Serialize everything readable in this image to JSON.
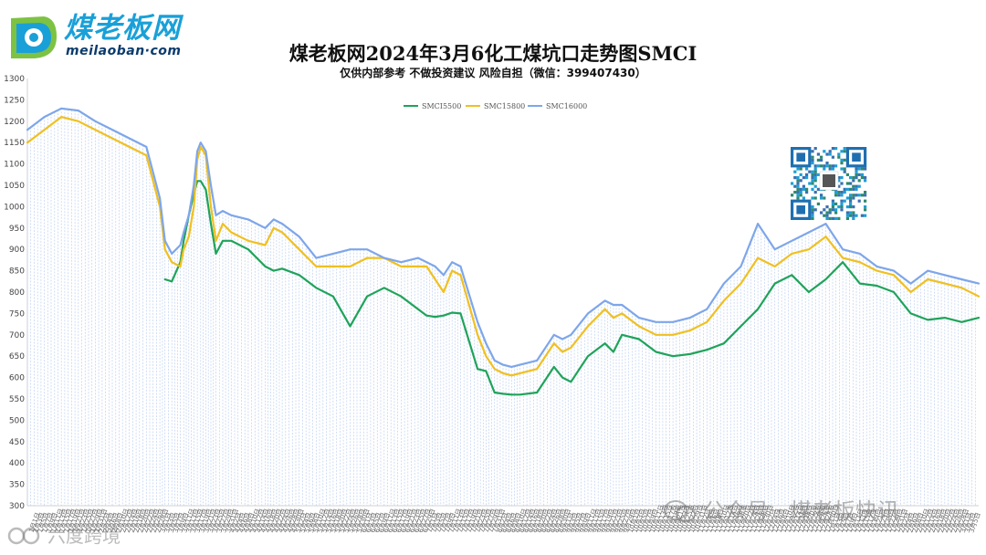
{
  "brand": {
    "name": "煤老板网",
    "url": "meilaoban·com"
  },
  "header": {
    "title": "煤老板网2024年3月6化工煤坑口走势图SMCI",
    "subtitle": "仅供内部参考 不做投资建议 风险自担（微信：399407430）"
  },
  "watermarks": {
    "wechat": "公众号 · 煤老板快讯",
    "corner": "六度跨境"
  },
  "icons": {
    "logo": "logo-mark-icon",
    "qr": "qr-code-icon",
    "wechat": "wechat-icon",
    "corner": "corner-brand-icon"
  },
  "chart_data": {
    "type": "line",
    "title": "煤老板网2024年3月6化工煤坑口走势图SMCI",
    "ylim": [
      300,
      1300
    ],
    "y_ticks": [
      300,
      350,
      400,
      450,
      500,
      550,
      600,
      650,
      700,
      750,
      800,
      850,
      900,
      950,
      1000,
      1050,
      1100,
      1150,
      1200,
      1250,
      1300
    ],
    "legend_position": "top-center",
    "grid": false,
    "x_ticks": [
      "1月1日",
      "1月3日",
      "1月5日",
      "1月7日",
      "1月9日",
      "1月11日",
      "1月13日",
      "1月15日",
      "1月17日",
      "1月19日",
      "1月21日",
      "1月23日",
      "1月25日",
      "1月27日",
      "1月29日",
      "1月31日",
      "2月2日",
      "2月4日",
      "2月6日",
      "2月8日",
      "2月10日",
      "2月12日",
      "2月14日",
      "2月16日",
      "2月18日",
      "2月20日",
      "2月22日",
      "2月24日",
      "2月26日",
      "2月28日",
      "3月1日",
      "3月3日",
      "3月5日",
      "3月7日",
      "3月9日",
      "3月11日",
      "3月13日",
      "3月15日",
      "3月17日",
      "3月19日",
      "3月21日",
      "3月23日",
      "3月25日",
      "3月27日",
      "3月29日",
      "3月31日",
      "4月2日",
      "4月4日",
      "4月6日",
      "4月8日",
      "4月10日",
      "4月12日",
      "4月14日",
      "4月16日",
      "4月18日",
      "4月20日",
      "4月22日",
      "4月24日",
      "4月26日",
      "4月28日",
      "4月30日",
      "5月2日",
      "5月4日",
      "5月6日",
      "5月8日",
      "5月10日",
      "5月12日",
      "5月14日",
      "5月16日",
      "5月18日",
      "5月20日",
      "5月22日",
      "5月24日",
      "5月26日",
      "5月28日",
      "5月30日",
      "6月1日",
      "6月3日",
      "6月5日",
      "6月7日",
      "6月9日",
      "6月11日",
      "6月13日",
      "6月15日",
      "6月17日",
      "6月19日",
      "6月21日",
      "6月23日",
      "6月25日",
      "6月27日",
      "6月29日",
      "7月1日",
      "7月3日",
      "7月5日",
      "7月7日",
      "7月9日",
      "7月11日",
      "7月13日",
      "7月15日",
      "7月17日",
      "7月19日",
      "7月21日",
      "7月23日",
      "7月25日",
      "7月27日",
      "7月29日",
      "7月31日",
      "8月2日",
      "8月4日",
      "8月6日",
      "8月8日",
      "8月10日",
      "8月12日",
      "8月14日",
      "8月16日",
      "8月18日",
      "8月20日",
      "8月22日",
      "8月24日",
      "8月26日",
      "8月28日",
      "8月30日",
      "9月1日",
      "9月3日",
      "9月5日",
      "9月7日",
      "9月9日",
      "9月11日",
      "9月13日",
      "9月15日",
      "9月17日",
      "9月19日",
      "9月21日",
      "9月23日",
      "9月25日",
      "9月27日",
      "9月29日",
      "10月1日",
      "10月3日",
      "10月5日",
      "10月7日",
      "10月9日",
      "10月11日",
      "10月13日",
      "10月15日",
      "10月17日",
      "10月19日",
      "10月21日",
      "10月23日",
      "10月25日",
      "10月27日",
      "10月29日",
      "10月31日",
      "11月2日",
      "11月4日",
      "11月6日",
      "11月8日",
      "11月10日",
      "11月12日",
      "11月14日",
      "11月16日",
      "11月18日",
      "11月20日",
      "11月22日",
      "11月24日",
      "11月26日",
      "11月28日",
      "11月30日",
      "12月2日",
      "12月4日",
      "12月6日",
      "12月8日",
      "12月10日",
      "12月12日",
      "12月14日",
      "12月16日",
      "12月18日",
      "12月20日",
      "12月22日",
      "12月24日",
      "12月26日",
      "12月28日",
      "12月30日",
      "1月1日",
      "1月3日",
      "1月5日",
      "1月7日",
      "1月9日",
      "1月11日",
      "1月13日",
      "1月15日",
      "1月17日",
      "1月19日",
      "1月21日",
      "1月23日",
      "1月25日",
      "1月27日",
      "1月29日",
      "1月31日",
      "2月2日",
      "2月4日",
      "2月6日",
      "2月8日",
      "2月10日",
      "2月12日",
      "2月14日",
      "2月16日",
      "2月18日",
      "2月20日",
      "2月22日",
      "2月24日",
      "2月26日",
      "2月28日",
      "3月1日",
      "3月3日",
      "3月5日"
    ],
    "x": [
      0,
      10,
      20,
      30,
      40,
      60,
      70,
      78,
      81,
      85,
      90,
      92,
      95,
      98,
      100,
      102,
      105,
      108,
      111,
      115,
      120,
      130,
      140,
      145,
      150,
      160,
      170,
      180,
      190,
      200,
      210,
      220,
      230,
      235,
      240,
      245,
      250,
      255,
      265,
      270,
      275,
      280,
      285,
      290,
      300,
      310,
      315,
      320,
      330,
      340,
      345,
      350,
      360,
      370,
      380,
      390,
      400,
      410,
      420,
      430,
      440,
      450,
      460,
      470,
      480,
      490,
      500,
      510,
      520,
      530,
      540,
      550,
      560
    ],
    "series": [
      {
        "name": "SMCI5500",
        "color": "#1fa35a",
        "values": [
          null,
          null,
          null,
          null,
          null,
          null,
          null,
          null,
          830,
          825,
          870,
          920,
          980,
          1030,
          1060,
          1060,
          1040,
          960,
          890,
          920,
          920,
          900,
          860,
          850,
          855,
          840,
          810,
          790,
          720,
          790,
          810,
          790,
          760,
          745,
          742,
          745,
          752,
          750,
          620,
          615,
          565,
          562,
          560,
          560,
          565,
          625,
          600,
          590,
          650,
          680,
          660,
          700,
          690,
          660,
          650,
          655,
          665,
          680,
          720,
          760,
          820,
          840,
          800,
          830,
          870,
          820,
          815,
          800,
          750,
          735,
          740,
          730,
          740
        ]
      },
      {
        "name": "SMC15800",
        "color": "#f0c020",
        "values": [
          1150,
          1180,
          1210,
          1200,
          1180,
          1140,
          1120,
          1000,
          900,
          870,
          860,
          900,
          930,
          1000,
          1110,
          1140,
          1120,
          1000,
          920,
          960,
          940,
          920,
          910,
          950,
          940,
          900,
          860,
          860,
          860,
          880,
          880,
          860,
          860,
          860,
          830,
          800,
          850,
          840,
          700,
          650,
          620,
          610,
          605,
          610,
          620,
          680,
          660,
          670,
          720,
          760,
          740,
          750,
          720,
          700,
          700,
          710,
          730,
          780,
          820,
          880,
          860,
          890,
          900,
          930,
          880,
          870,
          850,
          840,
          800,
          830,
          820,
          810,
          790
        ]
      },
      {
        "name": "SMC16000",
        "color": "#7ea6ea",
        "values": [
          1180,
          1210,
          1230,
          1225,
          1200,
          1160,
          1140,
          1020,
          920,
          890,
          910,
          940,
          980,
          1050,
          1130,
          1150,
          1130,
          1050,
          980,
          990,
          980,
          970,
          950,
          970,
          960,
          930,
          880,
          890,
          900,
          900,
          880,
          870,
          880,
          870,
          860,
          840,
          870,
          860,
          730,
          680,
          640,
          630,
          625,
          630,
          640,
          700,
          690,
          700,
          750,
          780,
          770,
          770,
          740,
          730,
          730,
          740,
          760,
          820,
          860,
          960,
          900,
          920,
          940,
          960,
          900,
          890,
          860,
          850,
          820,
          850,
          840,
          830,
          820
        ]
      }
    ]
  }
}
